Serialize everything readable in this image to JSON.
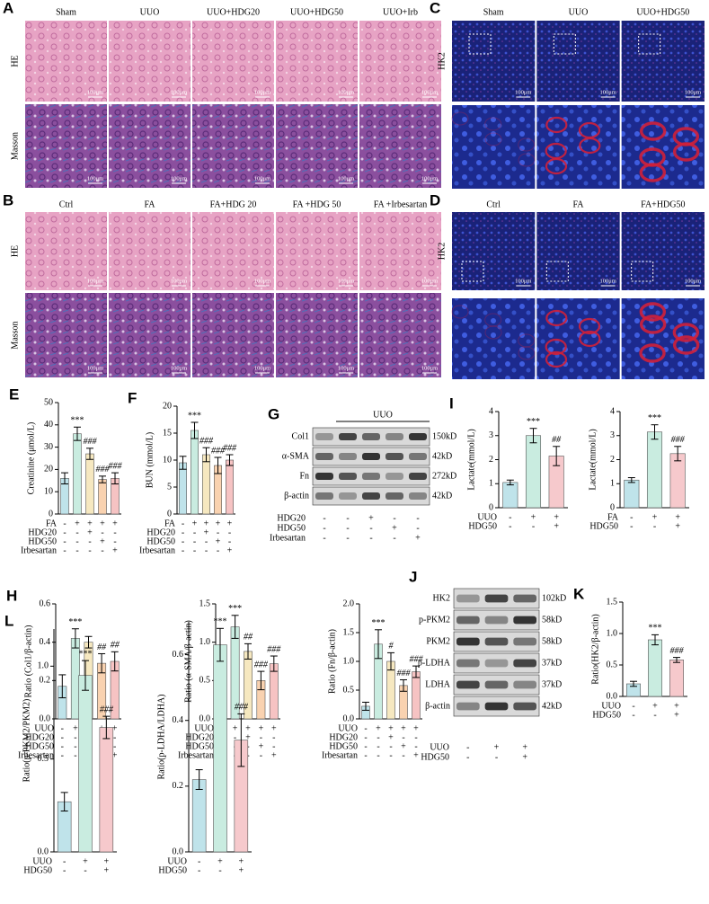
{
  "panels": {
    "A": {
      "letter": "A",
      "columns": [
        "Sham",
        "UUO",
        "UUO+HDG20",
        "UUO+HDG50",
        "UUO+Irb"
      ],
      "rows": [
        "HE",
        "Masson"
      ],
      "scale_bar": "100μm"
    },
    "B": {
      "letter": "B",
      "columns": [
        "Ctrl",
        "FA",
        "FA+HDG 20",
        "FA +HDG 50",
        "FA +Irbesartan"
      ],
      "rows": [
        "HE",
        "Masson"
      ],
      "scale_bar": "100μm"
    },
    "C": {
      "letter": "C",
      "columns": [
        "Sham",
        "UUO",
        "UUO+HDG50"
      ],
      "rows": [
        "HK2"
      ],
      "scale_bar": "100μm"
    },
    "D": {
      "letter": "D",
      "columns": [
        "Ctrl",
        "FA",
        "FA+HDG50"
      ],
      "rows": [
        "HK2"
      ],
      "scale_bar": "100μm"
    },
    "G": {
      "letter": "G",
      "header": "UUO",
      "proteins": [
        "Col1",
        "α-SMA",
        "Fn",
        "β-actin"
      ],
      "sizes": [
        "150kD",
        "42kD",
        "272kD",
        "42kD"
      ],
      "treatments": [
        {
          "name": "HDG20",
          "signs": [
            "-",
            "-",
            "+",
            "-",
            "-"
          ]
        },
        {
          "name": "HDG50",
          "signs": [
            "-",
            "-",
            "-",
            "+",
            "-"
          ]
        },
        {
          "name": "Irbesartan",
          "signs": [
            "-",
            "-",
            "-",
            "-",
            "+"
          ]
        }
      ]
    },
    "J": {
      "letter": "J",
      "proteins": [
        "HK2",
        "p-PKM2",
        "PKM2",
        "p-LDHA",
        "LDHA",
        "β-actin"
      ],
      "sizes": [
        "102kD",
        "58kD",
        "58kD",
        "37kD",
        "37kD",
        "42kD"
      ],
      "treatments": [
        {
          "name": "UUO",
          "signs": [
            "-",
            "+",
            "+"
          ]
        },
        {
          "name": "HDG50",
          "signs": [
            "-",
            "-",
            "+"
          ]
        }
      ]
    }
  },
  "chart_data": [
    {
      "type": "bar",
      "letter": "E",
      "ylabel": "Creatinine (μmol/L)",
      "ylim": [
        0,
        50
      ],
      "yticks": [
        0,
        10,
        20,
        30,
        40,
        50
      ],
      "values": [
        16,
        36,
        27,
        15.5,
        16
      ],
      "errors": [
        2.5,
        3,
        2.5,
        1.5,
        2.5
      ],
      "annotations": [
        null,
        "***",
        "###",
        "###",
        "###"
      ],
      "colors": [
        "#bfe3ea",
        "#c9ece0",
        "#f6e8c0",
        "#f9d2b0",
        "#f6c3c3"
      ],
      "treatments": [
        {
          "name": "FA",
          "signs": [
            "-",
            "+",
            "+",
            "+",
            "+"
          ]
        },
        {
          "name": "HDG20",
          "signs": [
            "-",
            "-",
            "+",
            "-",
            "-"
          ]
        },
        {
          "name": "HDG50",
          "signs": [
            "-",
            "-",
            "-",
            "+",
            "-"
          ]
        },
        {
          "name": "Irbesartan",
          "signs": [
            "-",
            "-",
            "-",
            "-",
            "+"
          ]
        }
      ]
    },
    {
      "type": "bar",
      "letter": "F",
      "ylabel": "BUN (mmol/L)",
      "ylim": [
        0,
        20
      ],
      "yticks": [
        0,
        5,
        10,
        15,
        20
      ],
      "values": [
        9.5,
        15.5,
        11,
        9,
        10
      ],
      "errors": [
        1.2,
        1.5,
        1.3,
        1.5,
        1
      ],
      "annotations": [
        null,
        "***",
        "###",
        "###",
        "###"
      ],
      "colors": [
        "#bfe3ea",
        "#c9ece0",
        "#f6e8c0",
        "#f9d2b0",
        "#f6c3c3"
      ],
      "treatments": [
        {
          "name": "FA",
          "signs": [
            "-",
            "+",
            "+",
            "+",
            "+"
          ]
        },
        {
          "name": "HDG20",
          "signs": [
            "-",
            "-",
            "+",
            "-",
            "-"
          ]
        },
        {
          "name": "HDG50",
          "signs": [
            "-",
            "-",
            "-",
            "+",
            "-"
          ]
        },
        {
          "name": "Irbesartan",
          "signs": [
            "-",
            "-",
            "-",
            "-",
            "+"
          ]
        }
      ]
    },
    {
      "type": "bar",
      "letter": "H",
      "ylabel": "Ratio (Col1/β-actin)",
      "ylim": [
        0,
        0.6
      ],
      "yticks": [
        {
          "value": 0,
          "label": "0.0"
        },
        0.2,
        0.4,
        0.6
      ],
      "values": [
        0.17,
        0.42,
        0.4,
        0.29,
        0.3
      ],
      "errors": [
        0.06,
        0.05,
        0.03,
        0.05,
        0.05
      ],
      "annotations": [
        null,
        "***",
        null,
        "##",
        "##"
      ],
      "colors": [
        "#bfe3ea",
        "#c9ece0",
        "#f6e8c0",
        "#f9d2b0",
        "#f6c3c3"
      ],
      "treatments": [
        {
          "name": "UUO",
          "signs": [
            "-",
            "+",
            "+",
            "+",
            "+"
          ]
        },
        {
          "name": "HDG20",
          "signs": [
            "-",
            "-",
            "+",
            "-",
            "-"
          ]
        },
        {
          "name": "HDG50",
          "signs": [
            "-",
            "-",
            "-",
            "+",
            "-"
          ]
        },
        {
          "name": "Irbesartan",
          "signs": [
            "-",
            "-",
            "-",
            "-",
            "+"
          ]
        }
      ]
    },
    {
      "type": "bar",
      "ylabel": "Ratio (α-SMA/β-actin)",
      "ylim": [
        0,
        1.5
      ],
      "yticks": [
        {
          "value": 0,
          "label": "0.0"
        },
        0.5,
        {
          "value": 1,
          "label": "1.0"
        },
        1.5
      ],
      "values": [
        0.27,
        1.2,
        0.88,
        0.5,
        0.72
      ],
      "errors": [
        0.05,
        0.15,
        0.1,
        0.12,
        0.1
      ],
      "annotations": [
        null,
        "***",
        "##",
        "###",
        "###"
      ],
      "colors": [
        "#bfe3ea",
        "#c9ece0",
        "#f6e8c0",
        "#f9d2b0",
        "#f6c3c3"
      ],
      "treatments": [
        {
          "name": "UUO",
          "signs": [
            "-",
            "+",
            "+",
            "+",
            "+"
          ]
        },
        {
          "name": "HDG20",
          "signs": [
            "-",
            "-",
            "+",
            "-",
            "-"
          ]
        },
        {
          "name": "HDG50",
          "signs": [
            "-",
            "-",
            "-",
            "+",
            "-"
          ]
        },
        {
          "name": "Irbesartan",
          "signs": [
            "-",
            "-",
            "-",
            "-",
            "+"
          ]
        }
      ]
    },
    {
      "type": "bar",
      "ylabel": "Ratio (Fn/β-actin)",
      "ylim": [
        0,
        2
      ],
      "yticks": [
        {
          "value": 0,
          "label": "0.0"
        },
        0.5,
        {
          "value": 1,
          "label": "1.0"
        },
        1.5,
        {
          "value": 2,
          "label": "2.0"
        }
      ],
      "values": [
        0.22,
        1.3,
        1.0,
        0.58,
        0.82
      ],
      "errors": [
        0.07,
        0.25,
        0.15,
        0.1,
        0.1
      ],
      "annotations": [
        null,
        "***",
        "#",
        "###",
        "###"
      ],
      "colors": [
        "#bfe3ea",
        "#c9ece0",
        "#f6e8c0",
        "#f9d2b0",
        "#f6c3c3"
      ],
      "treatments": [
        {
          "name": "UUO",
          "signs": [
            "-",
            "+",
            "+",
            "+",
            "+"
          ]
        },
        {
          "name": "HDG20",
          "signs": [
            "-",
            "-",
            "+",
            "-",
            "-"
          ]
        },
        {
          "name": "HDG50",
          "signs": [
            "-",
            "-",
            "-",
            "+",
            "-"
          ]
        },
        {
          "name": "Irbesartan",
          "signs": [
            "-",
            "-",
            "-",
            "-",
            "+"
          ]
        }
      ]
    },
    {
      "type": "bar",
      "letter": "I",
      "ylabel": "Lactate(mmol/L)",
      "ylim": [
        0,
        4
      ],
      "yticks": [
        0,
        1,
        2,
        3,
        4
      ],
      "values": [
        1.05,
        3.0,
        2.15
      ],
      "errors": [
        0.1,
        0.3,
        0.4
      ],
      "annotations": [
        null,
        "***",
        "##"
      ],
      "colors": [
        "#bfe3ea",
        "#c9ece0",
        "#f6c9cc"
      ],
      "treatments": [
        {
          "name": "UUO",
          "signs": [
            "-",
            "+",
            "+"
          ]
        },
        {
          "name": "HDG50",
          "signs": [
            "-",
            "-",
            "+"
          ]
        }
      ]
    },
    {
      "type": "bar",
      "ylabel": "Lactate(mmol/L)",
      "ylim": [
        0,
        4
      ],
      "yticks": [
        0,
        1,
        2,
        3,
        4
      ],
      "values": [
        1.15,
        3.15,
        2.25
      ],
      "errors": [
        0.1,
        0.3,
        0.3
      ],
      "annotations": [
        null,
        "***",
        "###"
      ],
      "colors": [
        "#bfe3ea",
        "#c9ece0",
        "#f6c9cc"
      ],
      "treatments": [
        {
          "name": "FA",
          "signs": [
            "-",
            "+",
            "+"
          ]
        },
        {
          "name": "HDG50",
          "signs": [
            "-",
            "-",
            "+"
          ]
        }
      ]
    },
    {
      "type": "bar",
      "letter": "K",
      "ylabel": "Ratio(HK2/β-actin)",
      "ylim": [
        0,
        1.5
      ],
      "yticks": [
        {
          "value": 0,
          "label": "0.0"
        },
        0.5,
        {
          "value": 1,
          "label": "1.0"
        },
        1.5
      ],
      "values": [
        0.2,
        0.9,
        0.58
      ],
      "errors": [
        0.04,
        0.08,
        0.04
      ],
      "annotations": [
        null,
        "***",
        "###"
      ],
      "colors": [
        "#bfe3ea",
        "#c9ece0",
        "#f6c9cc"
      ],
      "treatments": [
        {
          "name": "UUO",
          "signs": [
            "-",
            "+",
            "+"
          ]
        },
        {
          "name": "HDG50",
          "signs": [
            "-",
            "-",
            "+"
          ]
        }
      ]
    },
    {
      "type": "bar",
      "letter": "L",
      "ylabel": "Ratio(p-PKM2/PKM2)",
      "ylim": [
        0,
        1.2
      ],
      "yticks": [
        {
          "value": 0,
          "label": "0.0"
        },
        0.5,
        {
          "value": 1,
          "label": "1.0"
        }
      ],
      "values": [
        0.27,
        0.95,
        0.67
      ],
      "errors": [
        0.05,
        0.08,
        0.06
      ],
      "annotations": [
        null,
        "***",
        "###"
      ],
      "colors": [
        "#bfe3ea",
        "#c9ece0",
        "#f6c9cc"
      ],
      "treatments": [
        {
          "name": "UUO",
          "signs": [
            "-",
            "+",
            "+"
          ]
        },
        {
          "name": "HDG50",
          "signs": [
            "-",
            "-",
            "+"
          ]
        }
      ]
    },
    {
      "type": "bar",
      "ylabel": "Ratio(p-LDHA/LDHA)",
      "ylim": [
        0,
        0.7
      ],
      "yticks": [
        {
          "value": 0,
          "label": "0.0"
        },
        0.2,
        0.4,
        0.6
      ],
      "values": [
        0.22,
        0.63,
        0.34
      ],
      "errors": [
        0.03,
        0.05,
        0.08
      ],
      "annotations": [
        null,
        "***",
        "###"
      ],
      "colors": [
        "#bfe3ea",
        "#c9ece0",
        "#f6c9cc"
      ],
      "treatments": [
        {
          "name": "UUO",
          "signs": [
            "-",
            "+",
            "+"
          ]
        },
        {
          "name": "HDG50",
          "signs": [
            "-",
            "-",
            "+"
          ]
        }
      ]
    }
  ]
}
